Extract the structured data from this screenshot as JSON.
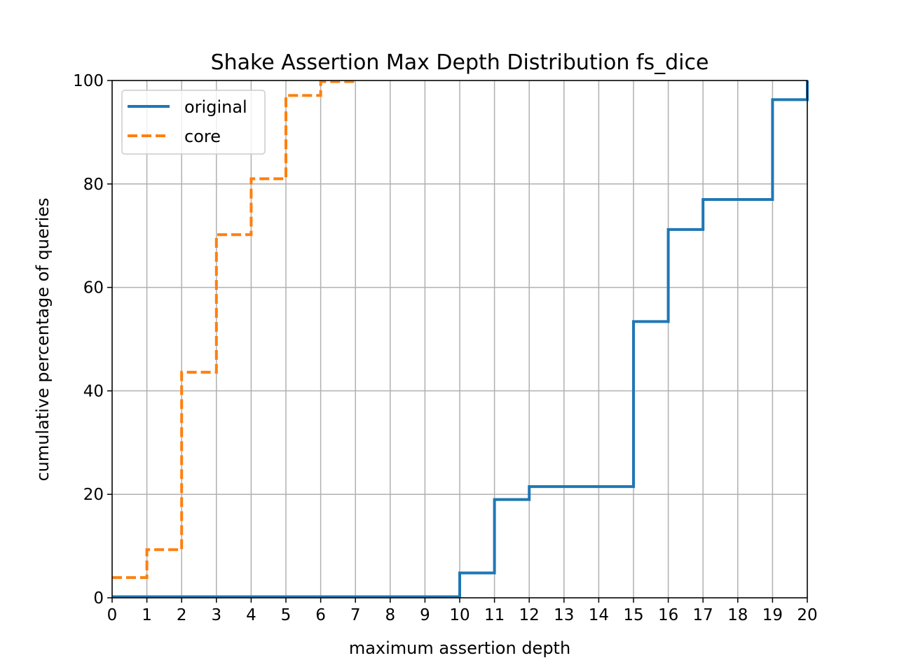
{
  "chart_data": {
    "type": "line",
    "drawstyle": "steps-post",
    "title": "Shake Assertion Max Depth Distribution fs_dice",
    "xlabel": "maximum assertion depth",
    "ylabel": "cumulative percentage of queries",
    "xlim": [
      0,
      20
    ],
    "ylim": [
      0,
      100
    ],
    "xticks": [
      "0",
      "1",
      "2",
      "3",
      "4",
      "5",
      "6",
      "7",
      "8",
      "9",
      "10",
      "11",
      "12",
      "13",
      "14",
      "15",
      "16",
      "17",
      "18",
      "19",
      "20"
    ],
    "yticks": [
      "0",
      "20",
      "40",
      "60",
      "80",
      "100"
    ],
    "grid": true,
    "legend": {
      "position": "upper-left",
      "entries": [
        "original",
        "core"
      ]
    },
    "series": [
      {
        "name": "original",
        "color": "#1f77b4",
        "dash": "solid",
        "x": [
          0,
          1,
          2,
          3,
          4,
          5,
          6,
          7,
          8,
          9,
          10,
          11,
          12,
          13,
          14,
          15,
          16,
          17,
          18,
          19,
          20
        ],
        "y": [
          0.2,
          0.2,
          0.2,
          0.2,
          0.2,
          0.2,
          0.2,
          0.2,
          0.2,
          0.2,
          4.8,
          19.0,
          21.5,
          21.5,
          21.5,
          53.4,
          71.2,
          77.0,
          77.0,
          96.3,
          100
        ]
      },
      {
        "name": "core",
        "color": "#ff7f0e",
        "dash": "dashed",
        "x": [
          0,
          1,
          2,
          3,
          4,
          5,
          6,
          7
        ],
        "y": [
          3.9,
          9.3,
          43.6,
          70.2,
          81.0,
          97.1,
          99.8,
          100
        ]
      }
    ]
  }
}
